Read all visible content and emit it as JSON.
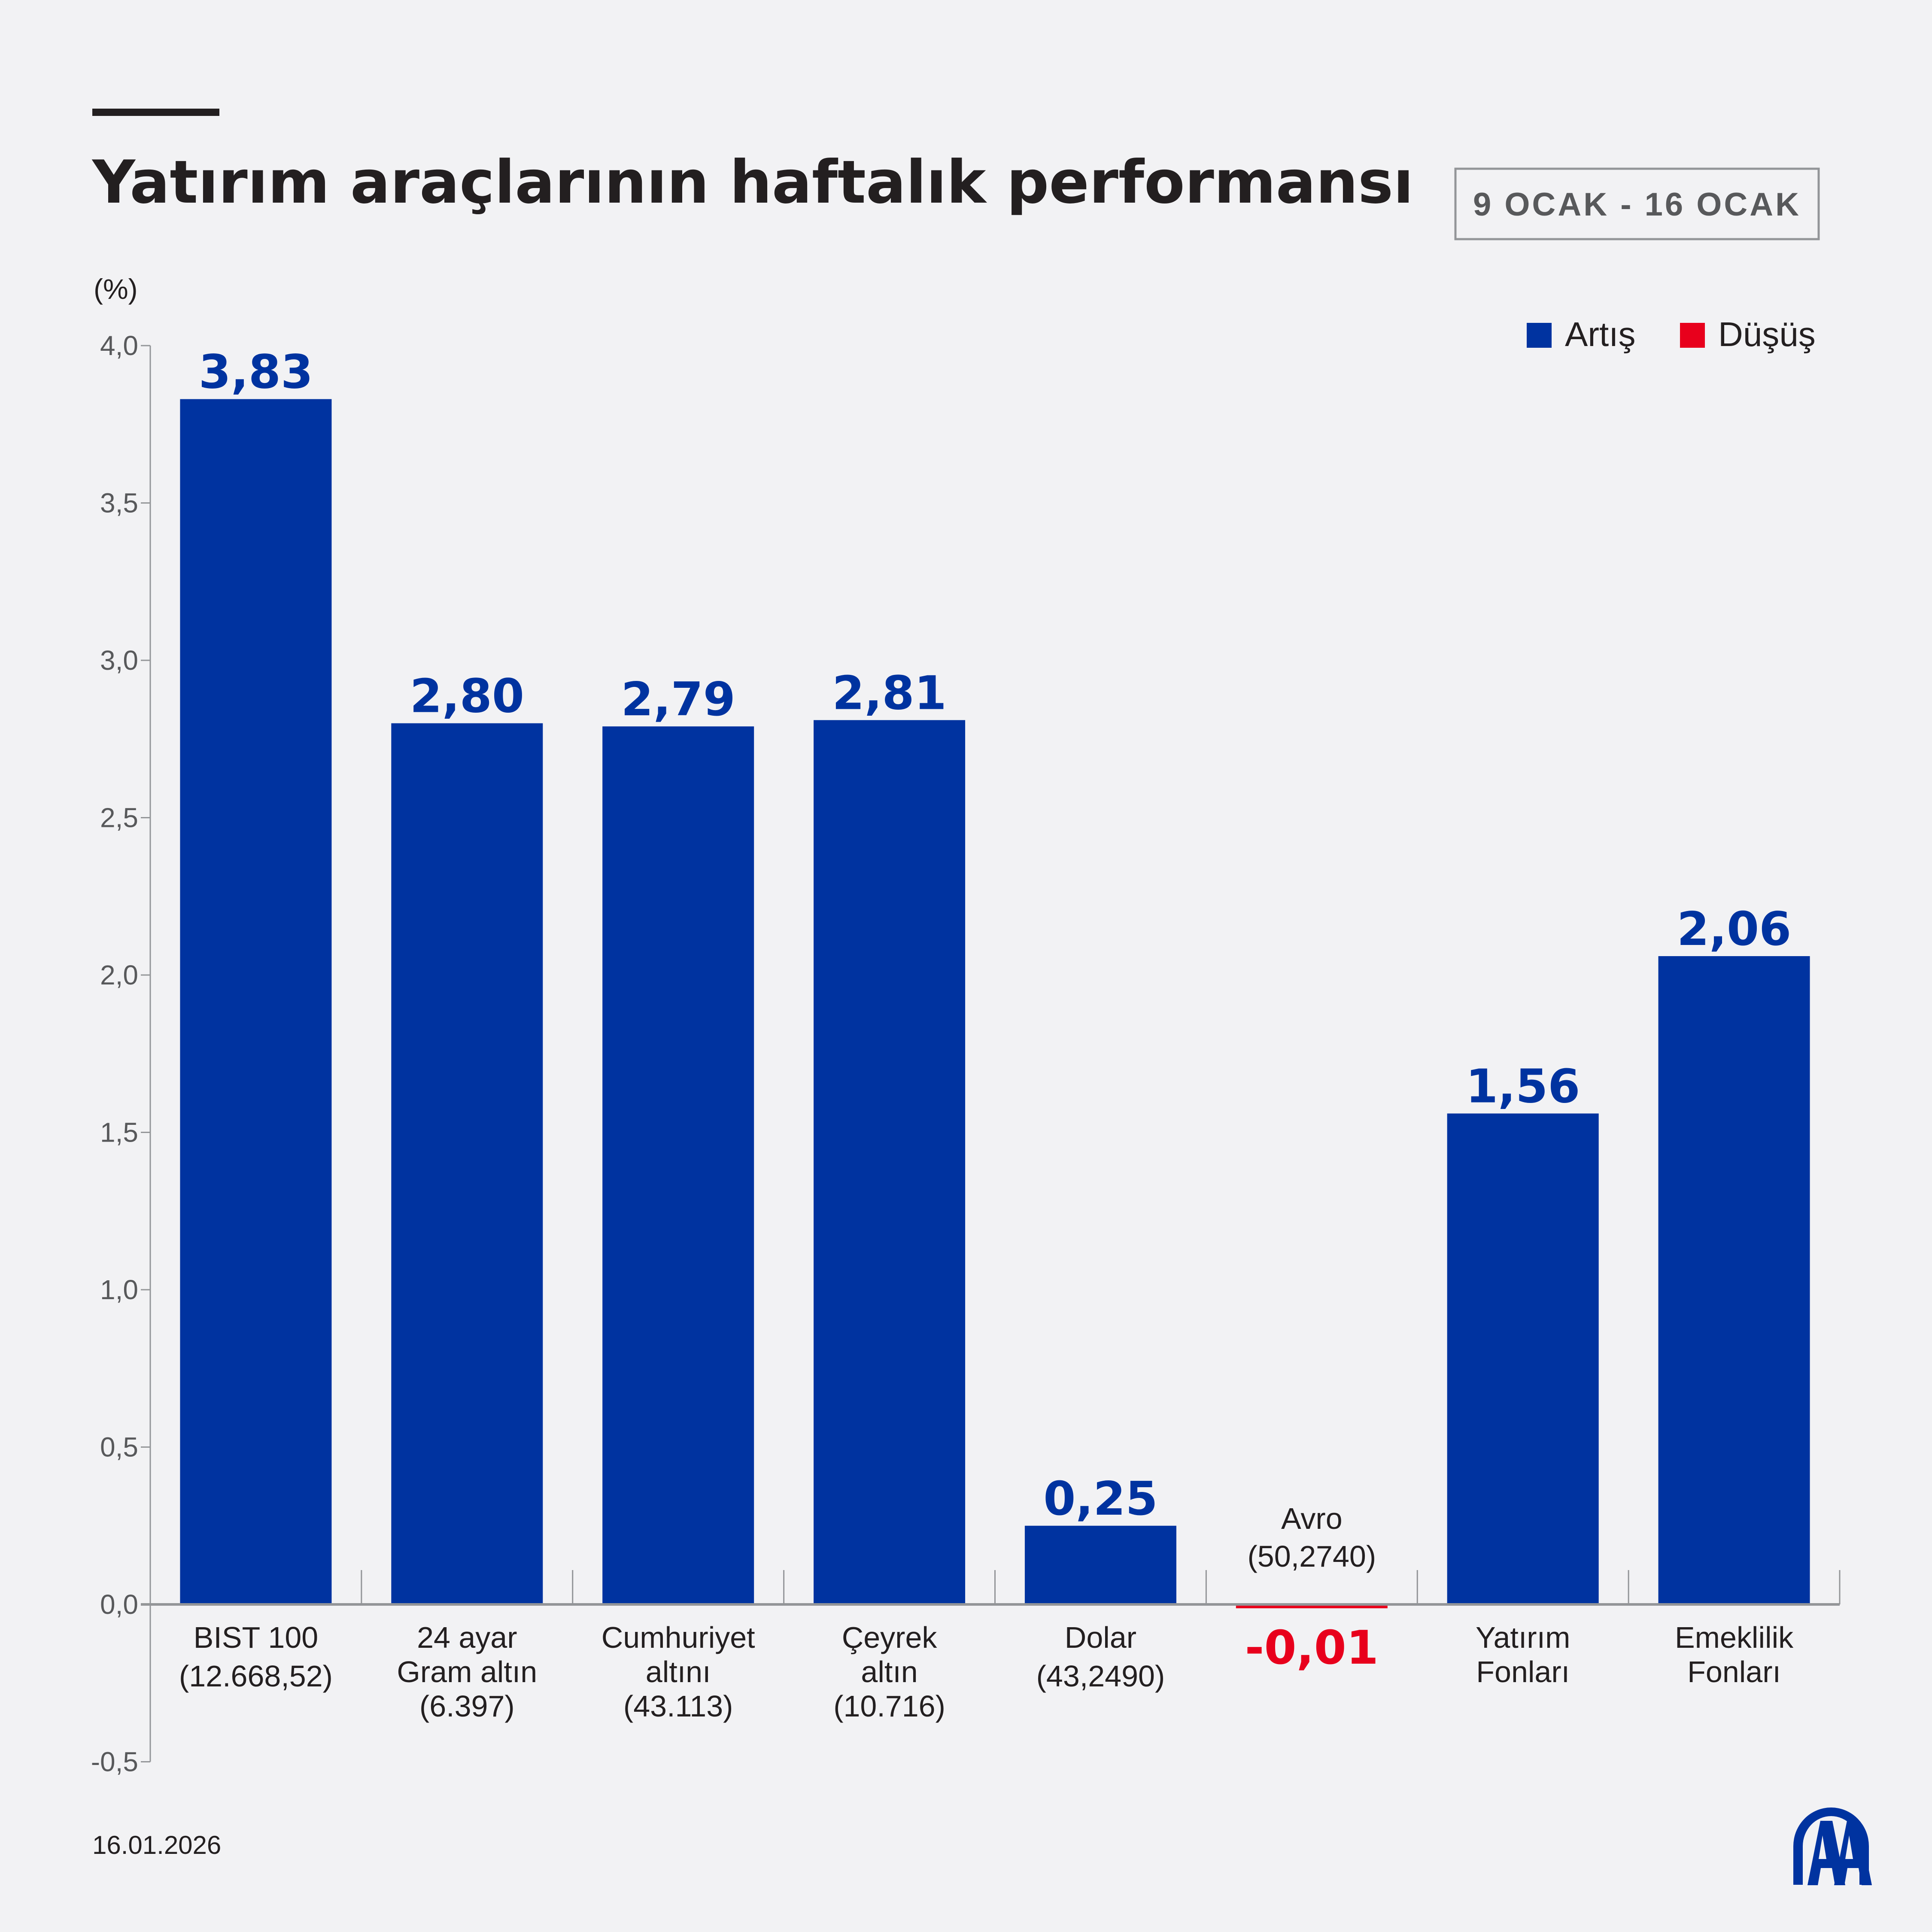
{
  "title": "Yatırım araçlarının haftalık performansı",
  "date_range": "9 OCAK - 16 OCAK",
  "footer_date": "16.01.2026",
  "logo_text": "AA",
  "colors": {
    "increase": "#0033a0",
    "decrease": "#e8001c",
    "background": "#f2f2f4"
  },
  "chart_data": {
    "type": "bar",
    "ylabel": "(%)",
    "ylim": [
      -0.5,
      4.0
    ],
    "yticks": [
      "4,0",
      "3,5",
      "3,0",
      "2,5",
      "2,0",
      "1,5",
      "1,0",
      "0,5",
      "0,0",
      "-0,5"
    ],
    "ytick_values": [
      4.0,
      3.5,
      3.0,
      2.5,
      2.0,
      1.5,
      1.0,
      0.5,
      0.0,
      -0.5
    ],
    "legend": [
      {
        "label": "Artış",
        "color": "#0033a0"
      },
      {
        "label": "Düşüş",
        "color": "#e8001c"
      }
    ],
    "legend_position": "top-right",
    "grid": false,
    "categories": [
      {
        "lines": [
          "BIST 100",
          "(12.668,52)"
        ]
      },
      {
        "lines": [
          "24 ayar",
          "Gram altın",
          "(6.397)"
        ]
      },
      {
        "lines": [
          "Cumhuriyet",
          "altını",
          "(43.113)"
        ]
      },
      {
        "lines": [
          "Çeyrek",
          "altın",
          "(10.716)"
        ]
      },
      {
        "lines": [
          "Dolar",
          "(43,2490)"
        ]
      },
      {
        "lines": [
          "Avro",
          "(50,2740)"
        ]
      },
      {
        "lines": [
          "Yatırım",
          "Fonları"
        ]
      },
      {
        "lines": [
          "Emeklilik",
          "Fonları"
        ]
      }
    ],
    "values": [
      3.83,
      2.8,
      2.79,
      2.81,
      0.25,
      -0.01,
      1.56,
      2.06
    ],
    "value_labels": [
      "3,83",
      "2,80",
      "2,79",
      "2,81",
      "0,25",
      "-0,01",
      "1,56",
      "2,06"
    ]
  }
}
